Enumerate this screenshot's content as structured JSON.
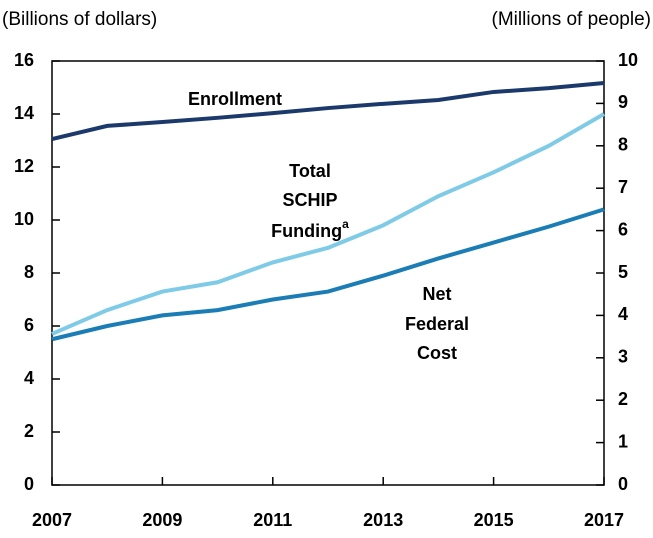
{
  "chart_data": {
    "type": "line",
    "y_axis_label": "(Billions of dollars)",
    "y2_axis_label": "(Millions of people)",
    "x": [
      2007,
      2008,
      2009,
      2010,
      2011,
      2012,
      2013,
      2014,
      2015,
      2016,
      2017
    ],
    "xlim": [
      2007,
      2017
    ],
    "xticks": [
      2007,
      2009,
      2011,
      2013,
      2015,
      2017
    ],
    "ylim": [
      0,
      16
    ],
    "yticks": [
      0,
      2,
      4,
      6,
      8,
      10,
      12,
      14,
      16
    ],
    "y2lim": [
      0,
      10
    ],
    "y2ticks": [
      0,
      1,
      2,
      3,
      4,
      5,
      6,
      7,
      8,
      9,
      10
    ],
    "series": [
      {
        "name": "Enrollment",
        "color": "#1b3a6b",
        "axis": "y2",
        "values": [
          8.16,
          8.47,
          8.56,
          8.66,
          8.77,
          8.89,
          8.99,
          9.08,
          9.27,
          9.36,
          9.48
        ]
      },
      {
        "name": "Total SCHIP Funding",
        "name_note": "a",
        "color": "#7ecbe8",
        "values": [
          5.7,
          6.6,
          7.3,
          7.65,
          8.4,
          8.95,
          9.8,
          10.9,
          11.8,
          12.8,
          14.0
        ]
      },
      {
        "name": "Net Federal Cost",
        "color": "#1a7db5",
        "values": [
          5.5,
          6.0,
          6.4,
          6.6,
          7.0,
          7.3,
          7.9,
          8.55,
          9.15,
          9.75,
          10.4
        ]
      }
    ]
  }
}
